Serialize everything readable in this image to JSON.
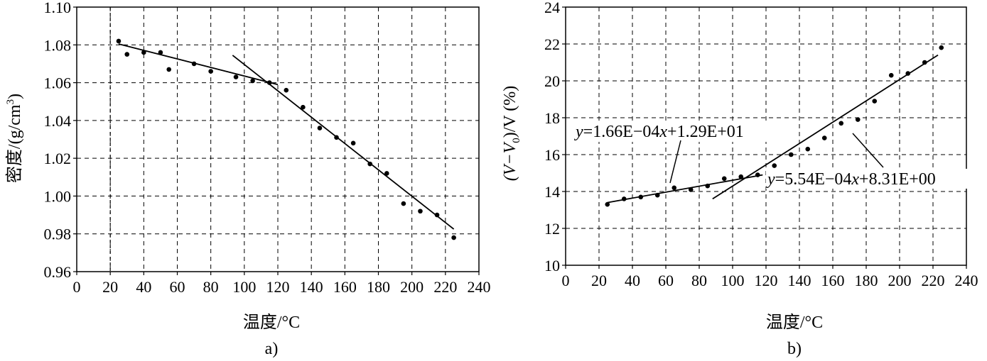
{
  "chart_data": [
    {
      "type": "scatter",
      "panel_label": "a)",
      "xlabel": "温度/°C",
      "ylabel": "密度/(g/cm³)",
      "ylabel_main": "密度/(g/cm",
      "ylabel_sup": "3",
      "ylabel_tail": ")",
      "xlim": [
        0,
        240
      ],
      "ylim": [
        0.96,
        1.1
      ],
      "xticks": [
        0,
        20,
        40,
        60,
        80,
        100,
        120,
        140,
        160,
        180,
        200,
        220,
        240
      ],
      "yticks": [
        0.96,
        0.98,
        1.0,
        1.02,
        1.04,
        1.06,
        1.08,
        1.1
      ],
      "xtick_labels": [
        "0",
        "20",
        "40",
        "60",
        "80",
        "100",
        "120",
        "140",
        "160",
        "180",
        "200",
        "220",
        "240"
      ],
      "ytick_labels": [
        "0.96",
        "0.98",
        "1.00",
        "1.02",
        "1.04",
        "1.06",
        "1.08",
        "1.10"
      ],
      "grid": true,
      "reference_x": 20,
      "points": [
        [
          25,
          1.082
        ],
        [
          30,
          1.075
        ],
        [
          40,
          1.076
        ],
        [
          50,
          1.076
        ],
        [
          55,
          1.067
        ],
        [
          70,
          1.07
        ],
        [
          80,
          1.066
        ],
        [
          95,
          1.063
        ],
        [
          105,
          1.061
        ],
        [
          115,
          1.06
        ],
        [
          125,
          1.056
        ],
        [
          135,
          1.047
        ],
        [
          145,
          1.036
        ],
        [
          155,
          1.031
        ],
        [
          165,
          1.028
        ],
        [
          175,
          1.017
        ],
        [
          185,
          1.012
        ],
        [
          195,
          0.996
        ],
        [
          205,
          0.992
        ],
        [
          215,
          0.99
        ],
        [
          225,
          0.978
        ]
      ],
      "fit_lines": [
        {
          "x": [
            25,
            120
          ],
          "y": [
            1.0805,
            1.059
          ]
        },
        {
          "x": [
            93,
            225
          ],
          "y": [
            1.0745,
            0.9825
          ]
        }
      ],
      "annotations": []
    },
    {
      "type": "scatter",
      "panel_label": "b)",
      "xlabel": "温度/°C",
      "ylabel": "(V−V₀)/V (%)",
      "ylabel_parts": [
        "(V−V",
        "0",
        ")/V (%)"
      ],
      "xlim": [
        0,
        240
      ],
      "ylim": [
        10,
        24
      ],
      "xticks": [
        0,
        20,
        40,
        60,
        80,
        100,
        120,
        140,
        160,
        180,
        200,
        220,
        240
      ],
      "yticks": [
        10,
        12,
        14,
        16,
        18,
        20,
        22,
        24
      ],
      "xtick_labels": [
        "0",
        "20",
        "40",
        "60",
        "80",
        "100",
        "120",
        "140",
        "160",
        "180",
        "200",
        "220",
        "240"
      ],
      "ytick_labels": [
        "10",
        "12",
        "14",
        "16",
        "18",
        "20",
        "22",
        "24"
      ],
      "grid": true,
      "points": [
        [
          25,
          13.3
        ],
        [
          35,
          13.6
        ],
        [
          45,
          13.7
        ],
        [
          55,
          13.8
        ],
        [
          65,
          14.2
        ],
        [
          75,
          14.1
        ],
        [
          85,
          14.3
        ],
        [
          95,
          14.7
        ],
        [
          105,
          14.8
        ],
        [
          115,
          14.9
        ],
        [
          125,
          15.4
        ],
        [
          135,
          16.0
        ],
        [
          145,
          16.3
        ],
        [
          155,
          16.9
        ],
        [
          165,
          17.7
        ],
        [
          175,
          17.9
        ],
        [
          185,
          18.9
        ],
        [
          195,
          20.3
        ],
        [
          205,
          20.4
        ],
        [
          215,
          21.0
        ],
        [
          225,
          21.8
        ]
      ],
      "fit_lines": [
        {
          "x": [
            25,
            118
          ],
          "y": [
            13.4,
            14.9
          ]
        },
        {
          "x": [
            88,
            223
          ],
          "y": [
            13.6,
            21.4
          ]
        }
      ],
      "annotations": [
        {
          "label": "y=1.66E−04x+1.29E+01",
          "parts": [
            "y",
            "=1.66E−04",
            "x",
            "+1.29E+01"
          ]
        },
        {
          "label": "y=5.54E−04x+8.31E+00",
          "parts": [
            "y",
            "=5.54E−04",
            "x",
            "+8.31E+00"
          ]
        }
      ]
    }
  ]
}
